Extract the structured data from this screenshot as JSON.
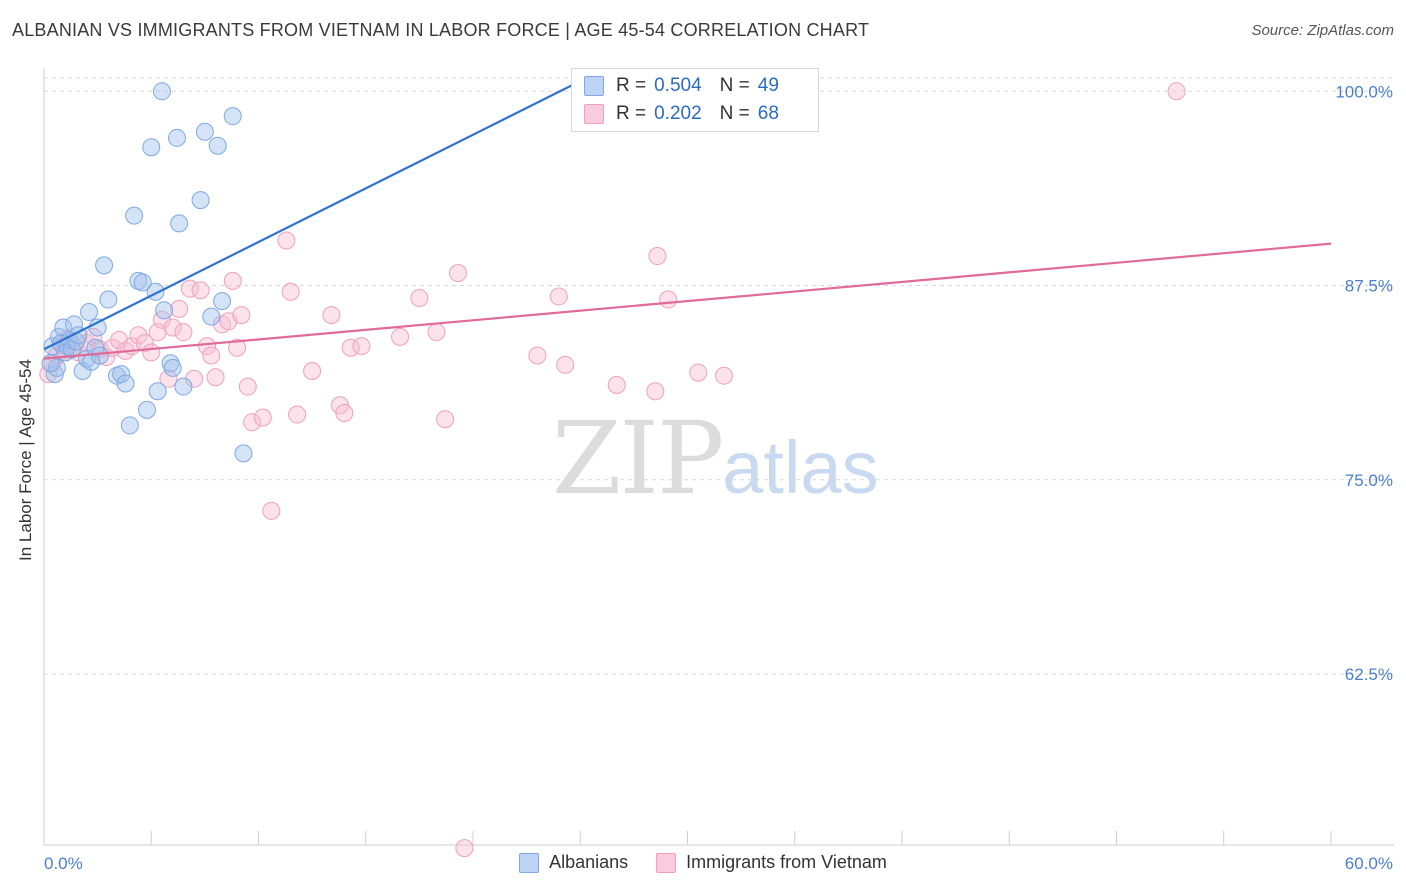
{
  "title": "ALBANIAN VS IMMIGRANTS FROM VIETNAM IN LABOR FORCE | AGE 45-54 CORRELATION CHART",
  "source": "Source: ZipAtlas.com",
  "watermark": {
    "zip": "ZIP",
    "atlas": "atlas"
  },
  "colors": {
    "albanians": "#7fa8e6",
    "albanians_line": "#2e74d0",
    "vietnam": "#f0a0bc",
    "vietnam_line": "#e06a98",
    "tick_text": "#4a7fd0",
    "grid": "#d9d9d9"
  },
  "legend": {
    "rows": [
      {
        "r_label": "R =",
        "r_value": "0.504",
        "n_label": "N =",
        "n_value": "49"
      },
      {
        "r_label": "R =",
        "r_value": "0.202",
        "n_label": "N =",
        "n_value": "68"
      }
    ]
  },
  "bottom_legend": [
    "Albanians",
    "Immigrants from Vietnam"
  ],
  "chart_data": {
    "type": "scatter",
    "title": "ALBANIAN VS IMMIGRANTS FROM VIETNAM IN LABOR FORCE | AGE 45-54 CORRELATION CHART",
    "xlabel": "",
    "ylabel": "In Labor Force | Age 45-54",
    "xlim": [
      0,
      60
    ],
    "ylim": [
      51.5,
      101.5
    ],
    "x_tick_labels": [
      "0.0%",
      "60.0%"
    ],
    "y_ticks": [
      62.5,
      75.0,
      87.5,
      100.0
    ],
    "y_tick_labels": [
      "62.5%",
      "75.0%",
      "87.5%",
      "100.0%"
    ],
    "grid": true,
    "legend_position": "top-center",
    "series": [
      {
        "name": "Albanians",
        "trend": {
          "x": [
            0.0,
            25.5
          ],
          "y": [
            83.4,
            101.0
          ]
        },
        "points": [
          [
            0.4,
            83.6
          ],
          [
            0.5,
            81.8
          ],
          [
            0.6,
            82.2
          ],
          [
            0.7,
            84.2
          ],
          [
            0.8,
            83.8
          ],
          [
            0.9,
            84.8
          ],
          [
            1.0,
            83.2
          ],
          [
            1.1,
            83.6
          ],
          [
            1.2,
            84.0
          ],
          [
            1.3,
            83.4
          ],
          [
            1.4,
            85.0
          ],
          [
            1.5,
            83.9
          ],
          [
            1.6,
            84.3
          ],
          [
            1.8,
            82.0
          ],
          [
            2.0,
            82.8
          ],
          [
            2.1,
            85.8
          ],
          [
            2.2,
            82.6
          ],
          [
            2.4,
            83.5
          ],
          [
            2.5,
            84.8
          ],
          [
            2.6,
            83.0
          ],
          [
            2.8,
            88.8
          ],
          [
            3.0,
            86.6
          ],
          [
            3.4,
            81.7
          ],
          [
            3.6,
            81.8
          ],
          [
            3.8,
            81.2
          ],
          [
            4.0,
            78.5
          ],
          [
            4.2,
            92.0
          ],
          [
            4.4,
            87.8
          ],
          [
            4.6,
            87.7
          ],
          [
            4.8,
            79.5
          ],
          [
            5.0,
            96.4
          ],
          [
            5.2,
            87.1
          ],
          [
            5.3,
            80.7
          ],
          [
            5.5,
            100.0
          ],
          [
            5.6,
            85.9
          ],
          [
            5.9,
            82.5
          ],
          [
            6.0,
            82.2
          ],
          [
            6.2,
            97.0
          ],
          [
            6.3,
            91.5
          ],
          [
            6.5,
            81.0
          ],
          [
            7.3,
            93.0
          ],
          [
            7.5,
            97.4
          ],
          [
            7.8,
            85.5
          ],
          [
            8.1,
            96.5
          ],
          [
            8.3,
            86.5
          ],
          [
            8.8,
            98.4
          ],
          [
            9.3,
            76.7
          ],
          [
            25.5,
            100.0
          ],
          [
            0.3,
            82.5
          ]
        ]
      },
      {
        "name": "Immigrants from Vietnam",
        "trend": {
          "x": [
            0.0,
            60.0
          ],
          "y": [
            82.8,
            90.2
          ]
        },
        "points": [
          [
            0.2,
            81.8
          ],
          [
            0.4,
            82.5
          ],
          [
            0.6,
            83.0
          ],
          [
            0.8,
            83.7
          ],
          [
            1.0,
            83.2
          ],
          [
            1.2,
            84.0
          ],
          [
            1.4,
            83.6
          ],
          [
            1.6,
            83.2
          ],
          [
            2.0,
            83.8
          ],
          [
            2.3,
            84.2
          ],
          [
            2.6,
            83.4
          ],
          [
            2.9,
            82.9
          ],
          [
            3.2,
            83.5
          ],
          [
            3.5,
            84.0
          ],
          [
            3.8,
            83.3
          ],
          [
            4.1,
            83.6
          ],
          [
            4.4,
            84.3
          ],
          [
            4.7,
            83.8
          ],
          [
            5.0,
            83.2
          ],
          [
            5.3,
            84.5
          ],
          [
            5.5,
            85.3
          ],
          [
            5.8,
            81.5
          ],
          [
            6.0,
            84.8
          ],
          [
            6.3,
            86.0
          ],
          [
            6.5,
            84.5
          ],
          [
            6.8,
            87.3
          ],
          [
            7.0,
            81.5
          ],
          [
            7.3,
            87.2
          ],
          [
            7.6,
            83.6
          ],
          [
            7.8,
            83.0
          ],
          [
            8.0,
            81.6
          ],
          [
            8.3,
            85.0
          ],
          [
            8.6,
            85.2
          ],
          [
            8.8,
            87.8
          ],
          [
            9.0,
            83.5
          ],
          [
            9.2,
            85.6
          ],
          [
            9.5,
            81.0
          ],
          [
            9.7,
            78.7
          ],
          [
            10.2,
            79.0
          ],
          [
            10.6,
            73.0
          ],
          [
            11.3,
            90.4
          ],
          [
            11.5,
            87.1
          ],
          [
            11.8,
            79.2
          ],
          [
            12.5,
            82.0
          ],
          [
            13.4,
            85.6
          ],
          [
            13.8,
            79.8
          ],
          [
            14.0,
            79.3
          ],
          [
            14.3,
            83.5
          ],
          [
            14.8,
            83.6
          ],
          [
            16.6,
            84.2
          ],
          [
            17.5,
            86.7
          ],
          [
            18.3,
            84.5
          ],
          [
            18.7,
            78.9
          ],
          [
            19.3,
            88.3
          ],
          [
            19.6,
            51.3
          ],
          [
            23.0,
            83.0
          ],
          [
            24.0,
            86.8
          ],
          [
            24.3,
            82.4
          ],
          [
            25.8,
            100.0
          ],
          [
            26.7,
            81.1
          ],
          [
            28.5,
            80.7
          ],
          [
            28.6,
            89.4
          ],
          [
            29.1,
            86.6
          ],
          [
            30.5,
            81.9
          ],
          [
            31.0,
            99.9
          ],
          [
            31.7,
            81.7
          ],
          [
            52.8,
            100.0
          ],
          [
            1.1,
            84.1
          ]
        ]
      }
    ]
  }
}
